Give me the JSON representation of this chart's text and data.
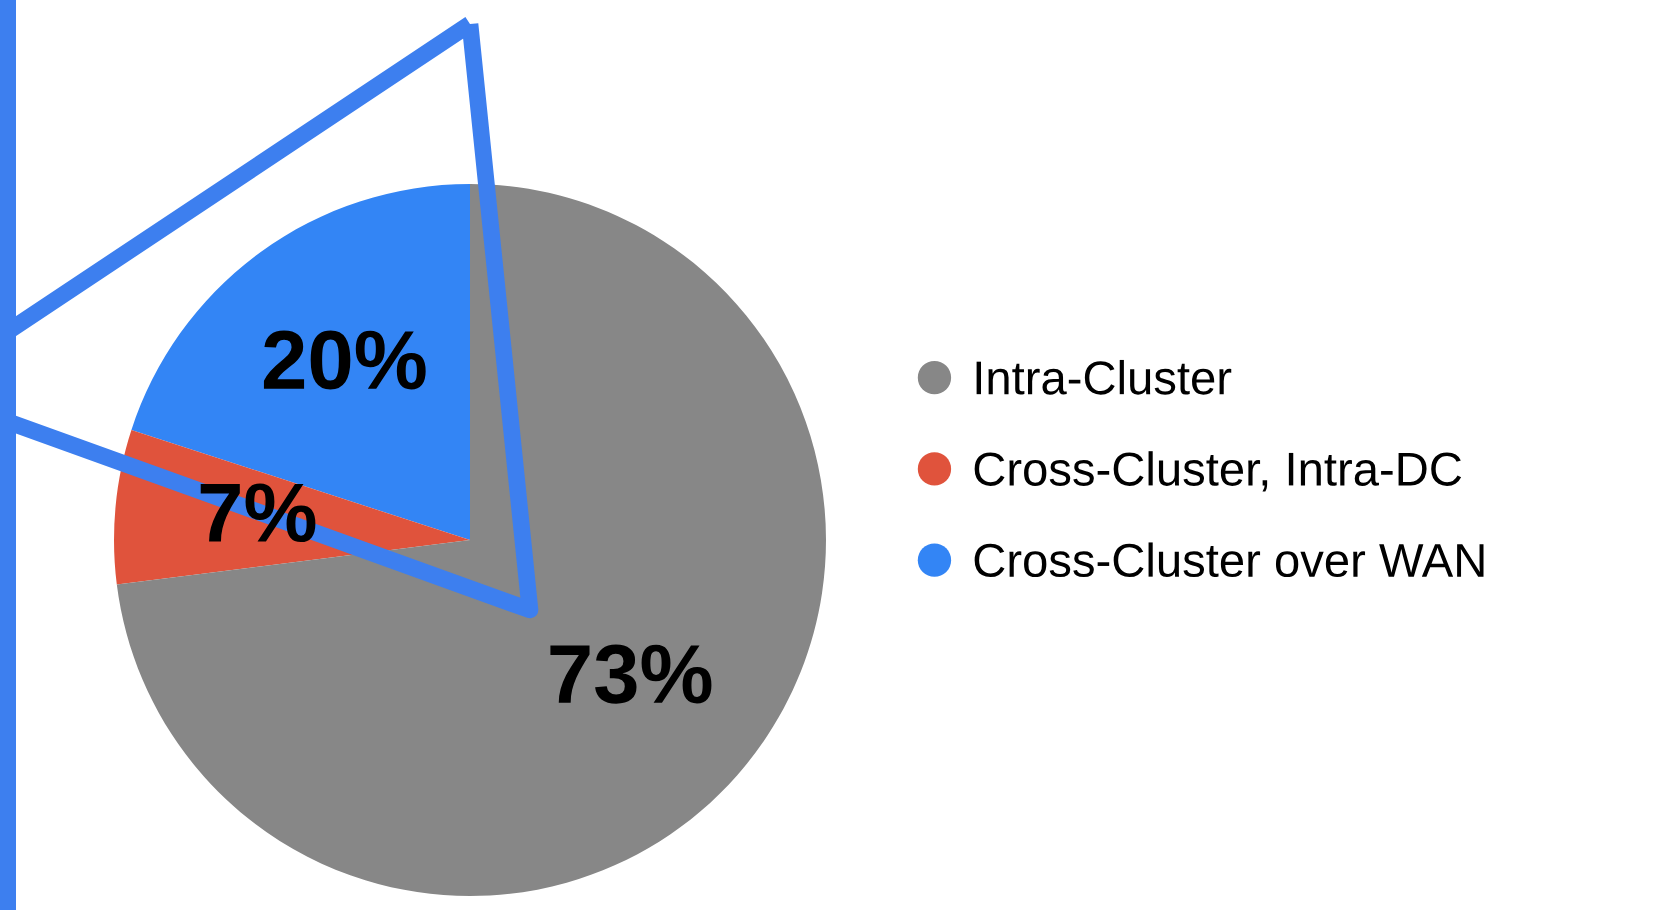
{
  "chart_data": {
    "type": "pie",
    "categories": [
      "Intra-Cluster",
      "Cross-Cluster, Intra-DC",
      "Cross-Cluster over WAN"
    ],
    "values": [
      73,
      7,
      20
    ],
    "colors": [
      "#878787",
      "#e0533c",
      "#3385f5"
    ],
    "value_labels": [
      "73%",
      "7%",
      "20%"
    ],
    "legend": "right"
  }
}
